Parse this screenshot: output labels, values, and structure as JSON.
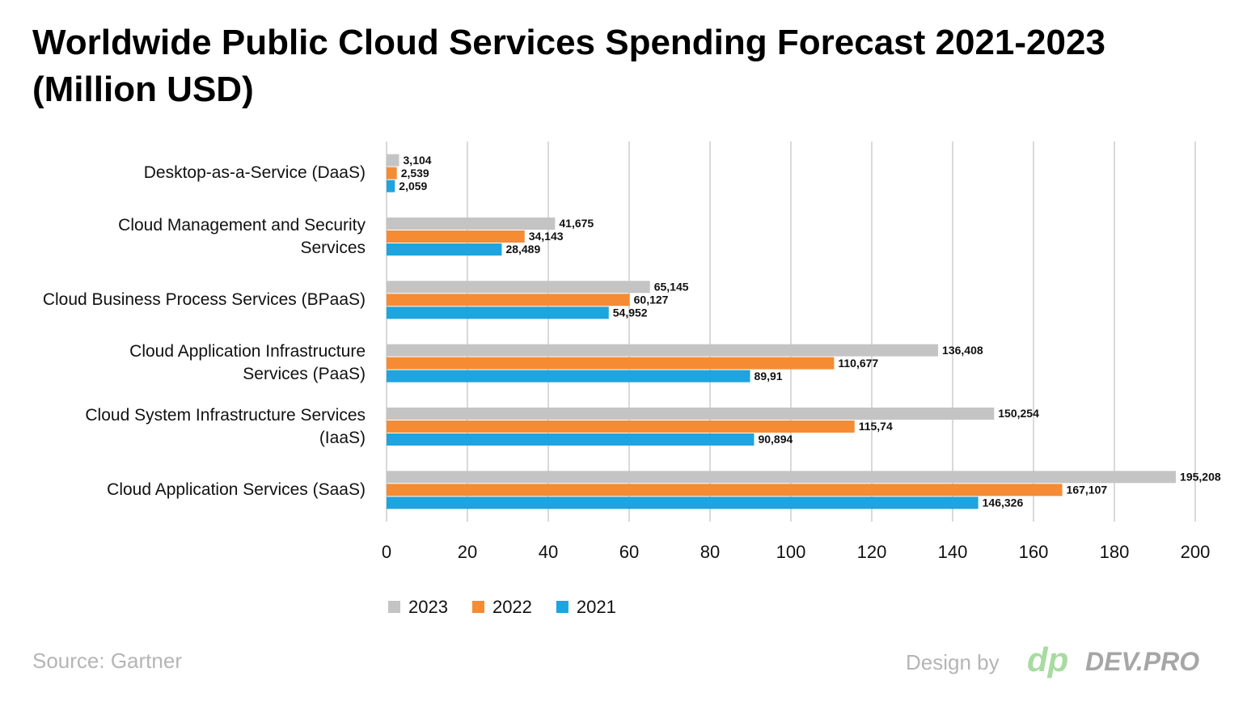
{
  "chart_data": {
    "type": "bar",
    "orientation": "horizontal",
    "title": "Worldwide Public Cloud Services Spending Forecast 2021-2023\n(Million USD)",
    "categories": [
      "Desktop-as-a-Service (DaaS)",
      "Cloud Management and Security\nServices",
      "Cloud Business Process Services (BPaaS)",
      "Cloud Application Infrastructure\nServices (PaaS)",
      "Cloud System Infrastructure Services\n(IaaS)",
      "Cloud Application Services (SaaS)"
    ],
    "series": [
      {
        "name": "2023",
        "color": "#c4c4c4",
        "values": [
          3.104,
          41.675,
          65.145,
          136.408,
          150.254,
          195.208
        ],
        "value_labels": [
          "3,104",
          "41,675",
          "65,145",
          "136,408",
          "150,254",
          "195,208"
        ]
      },
      {
        "name": "2022",
        "color": "#f58b33",
        "values": [
          2.539,
          34.143,
          60.127,
          110.677,
          115.74,
          167.107
        ],
        "value_labels": [
          "2,539",
          "34,143",
          "60,127",
          "110,677",
          "115,74",
          "167,107"
        ]
      },
      {
        "name": "2021",
        "color": "#1ea4de",
        "values": [
          2.059,
          28.489,
          54.952,
          89.91,
          90.894,
          146.326
        ],
        "value_labels": [
          "2,059",
          "28,489",
          "54,952",
          "89,91",
          "90,894",
          "146,326"
        ]
      }
    ],
    "xlim": [
      0,
      200
    ],
    "xticks": [
      0,
      20,
      40,
      60,
      80,
      100,
      120,
      140,
      160,
      180,
      200
    ],
    "grid": true,
    "legend": "bottom-left",
    "source": "Source: Gartner",
    "credit": "Design by",
    "logo": "dp",
    "brand": "DEV.PRO"
  }
}
